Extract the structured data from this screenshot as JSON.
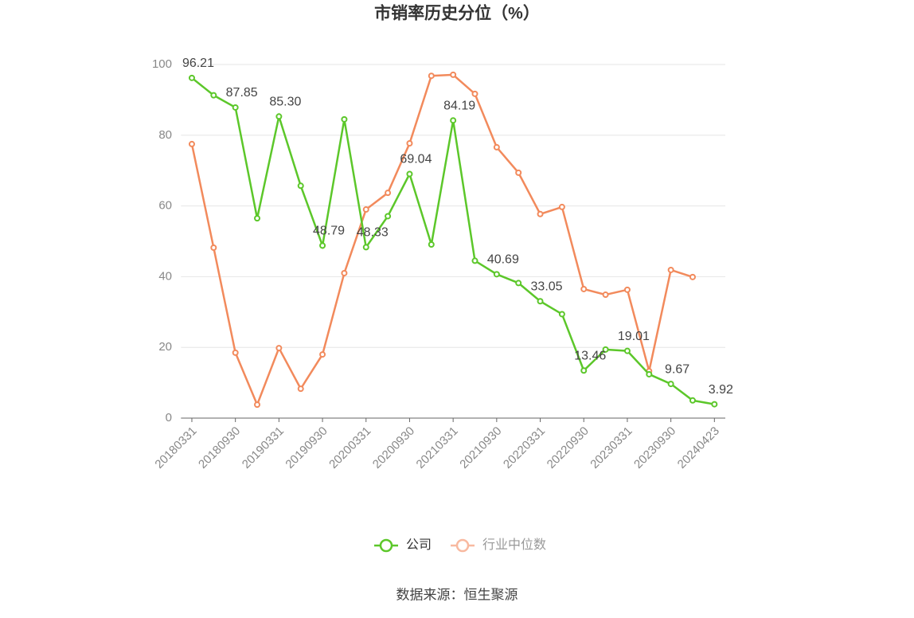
{
  "chart_data": {
    "type": "line",
    "title": "市销率历史分位（%）",
    "categories": [
      "20180331",
      null,
      "20180930",
      null,
      "20190331",
      null,
      "20190930",
      null,
      "20200331",
      null,
      "20200930",
      null,
      "20210331",
      null,
      "20210930",
      null,
      "20220331",
      null,
      "20220930",
      null,
      "20230331",
      null,
      "20230930",
      null,
      "20240423"
    ],
    "series": [
      {
        "name": "公司",
        "color": "#5cc72a",
        "values": [
          96.21,
          91.3,
          87.85,
          56.5,
          85.3,
          65.7,
          48.79,
          84.5,
          48.33,
          57.1,
          69.04,
          49.1,
          84.19,
          44.5,
          40.69,
          38.2,
          33.05,
          29.4,
          13.46,
          19.4,
          19.01,
          12.4,
          9.67,
          5.0,
          3.92
        ],
        "value_labels": [
          "96.21",
          null,
          "87.85",
          null,
          "85.30",
          null,
          "48.79",
          null,
          "48.33",
          null,
          "69.04",
          null,
          "84.19",
          null,
          "40.69",
          null,
          "33.05",
          null,
          "13.46",
          null,
          "19.01",
          null,
          "9.67",
          null,
          "3.92"
        ]
      },
      {
        "name": "行业中位数",
        "color": "#f28a5c",
        "values": [
          77.5,
          48.2,
          18.5,
          3.8,
          19.8,
          8.3,
          18.0,
          41.0,
          59.0,
          63.7,
          77.7,
          96.8,
          97.1,
          91.7,
          76.6,
          69.4,
          57.7,
          59.7,
          36.5,
          34.9,
          36.3,
          13.3,
          41.9,
          39.9,
          null
        ]
      }
    ],
    "ylim": [
      0,
      100
    ],
    "yticks": [
      0,
      20,
      40,
      60,
      80,
      100
    ],
    "grid": true,
    "source": "数据来源：恒生聚源"
  }
}
